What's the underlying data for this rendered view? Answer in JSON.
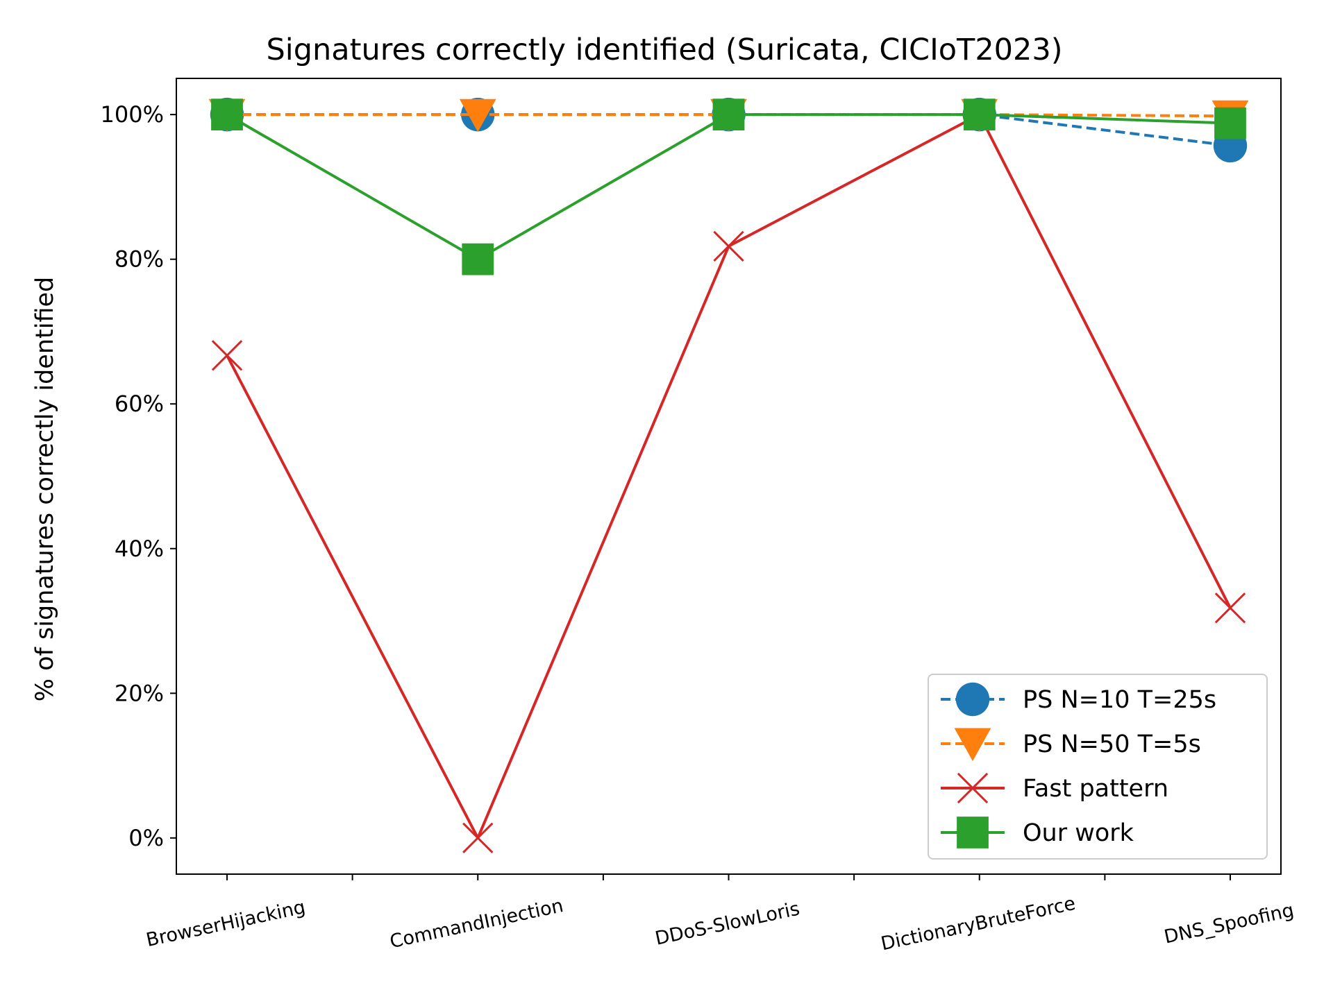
{
  "chart_data": {
    "type": "line",
    "title": "Signatures correctly identified (Suricata, CICIoT2023)",
    "xlabel": "",
    "ylabel": "% of signatures correctly identified",
    "categories": [
      "BrowserHijacking",
      "CommandInjection",
      "DDoS-SlowLoris",
      "DictionaryBruteForce",
      "DNS_Spoofing"
    ],
    "ylim": [
      -5,
      105
    ],
    "yticks": [
      0,
      20,
      40,
      60,
      80,
      100
    ],
    "ytick_labels": [
      "0%",
      "20%",
      "40%",
      "60%",
      "80%",
      "100%"
    ],
    "grid": false,
    "legend_position": "lower-right",
    "series": [
      {
        "name": "PS N=10 T=25s",
        "values": [
          100,
          100,
          100,
          100,
          95.7
        ],
        "color": "#1f77b4",
        "line_style": "dashed",
        "marker": "circle"
      },
      {
        "name": "PS N=50 T=5s",
        "values": [
          100,
          100,
          100,
          100,
          99.8
        ],
        "color": "#ff7f0e",
        "line_style": "dashed",
        "marker": "triangle-down"
      },
      {
        "name": "Fast pattern",
        "values": [
          66.7,
          0,
          81.8,
          100,
          31.8
        ],
        "color": "#d62728",
        "line_style": "solid",
        "marker": "x"
      },
      {
        "name": "Our work",
        "values": [
          100,
          80,
          100,
          100,
          98.8
        ],
        "color": "#2ca02c",
        "line_style": "solid",
        "marker": "square"
      }
    ]
  }
}
